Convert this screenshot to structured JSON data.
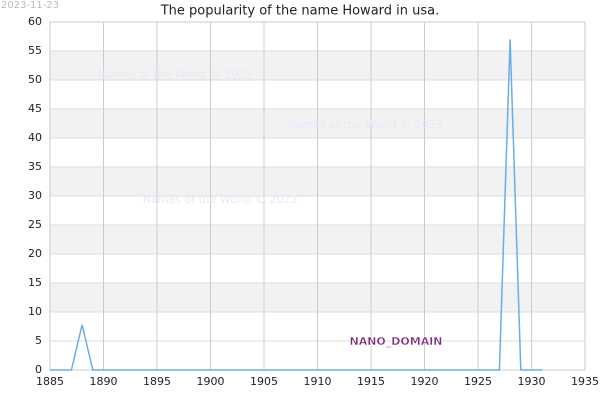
{
  "chart_data": {
    "type": "line",
    "title": "The popularity of the name Howard in usa.",
    "date_stamp": "2023-11-23",
    "watermarks": [
      "Names of the World © 2023",
      "Names of the World © 2023",
      "Names of the World © 2023"
    ],
    "nano_label": "NANO_DOMAIN",
    "x": [
      1885,
      1887,
      1888,
      1889,
      1927,
      1928,
      1929,
      1931
    ],
    "series": [
      {
        "name": "Howard",
        "color": "#6aaee8",
        "values": [
          0,
          0,
          7.8,
          0,
          0,
          57,
          0,
          0
        ]
      }
    ],
    "xlim": [
      1885,
      1935
    ],
    "xticks": [
      1885,
      1890,
      1895,
      1900,
      1905,
      1910,
      1915,
      1920,
      1925,
      1930,
      1935
    ],
    "ylim": [
      0,
      60
    ],
    "yticks": [
      0,
      5,
      10,
      15,
      20,
      25,
      30,
      35,
      40,
      45,
      50,
      55,
      60
    ],
    "grid": true,
    "band_color": "#f2f2f2"
  }
}
